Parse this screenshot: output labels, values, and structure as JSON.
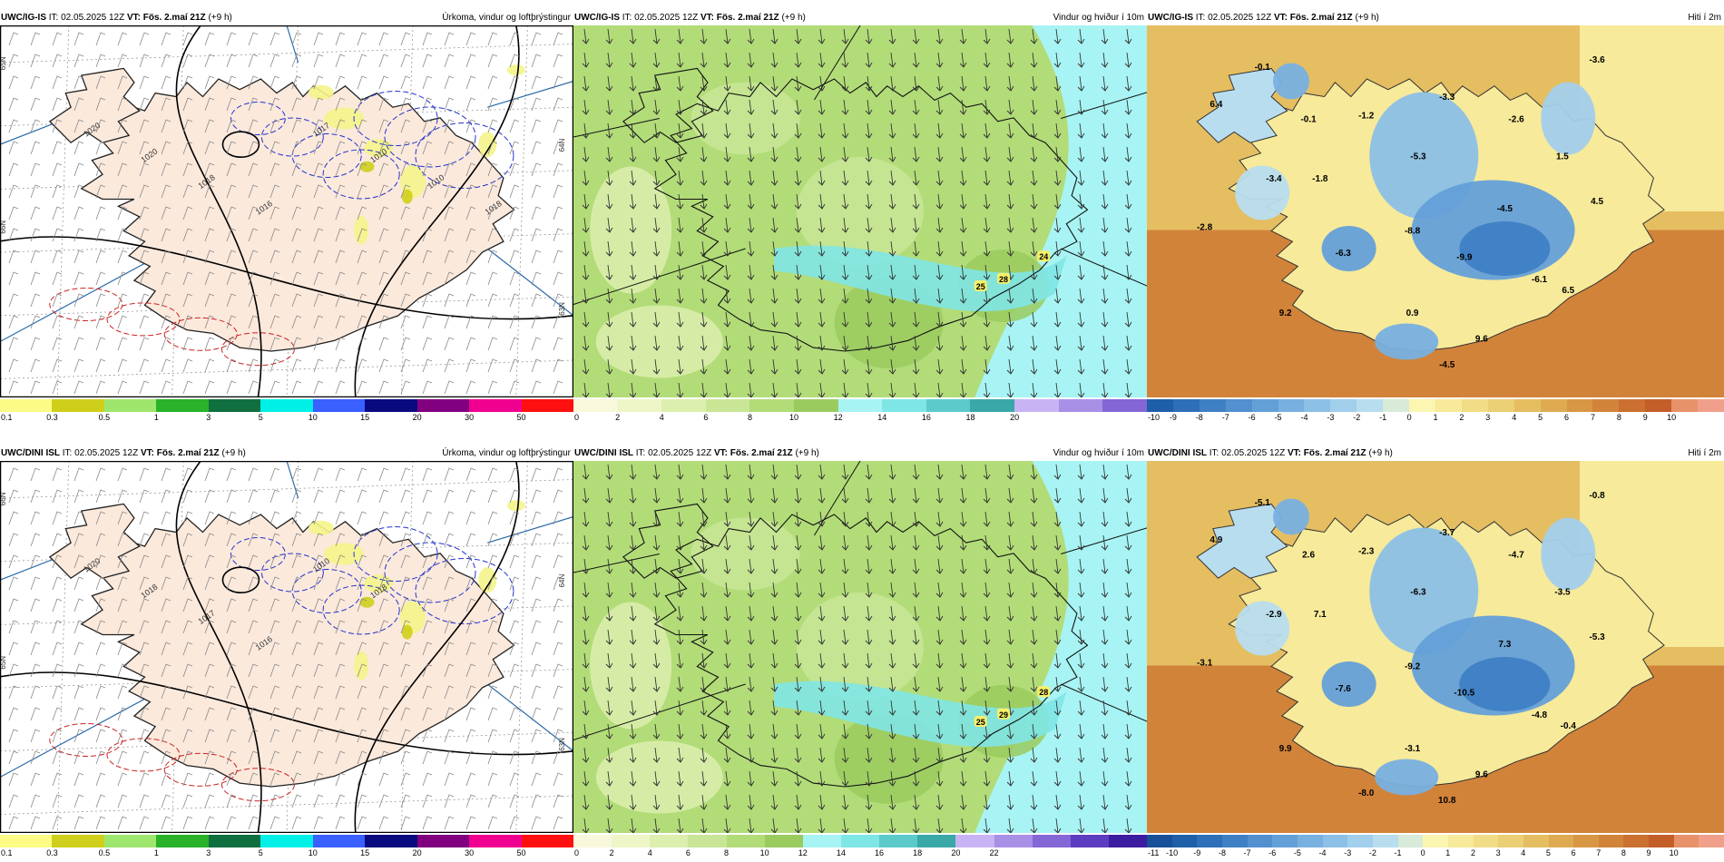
{
  "panels": [
    {
      "id": "a",
      "model": "UWC/IG-IS",
      "it_label": "IT:",
      "it": "02.05.2025 12Z",
      "vt_label": "VT:",
      "vt": "Fös. 2.maí 21Z",
      "lead": "(+9 h)",
      "field": "Úrkoma, vindur og loftþrýstingur",
      "type": "precip",
      "isobars": [
        "1020",
        "1020",
        "1018",
        "1016",
        "1017",
        "1010",
        "1010",
        "1018"
      ],
      "grid_labels": [
        "65N",
        "64N",
        "66N",
        "63N"
      ],
      "colorbar": {
        "colors": [
          "#fbfb86",
          "#cfcf1b",
          "#9fe66f",
          "#2ab22a",
          "#0f6f3f",
          "#00f0e8",
          "#3a60ff",
          "#0a0a80",
          "#800080",
          "#f00090",
          "#ff1010"
        ],
        "labels": [
          "0.1",
          "0.3",
          "0.5",
          "1",
          "3",
          "5",
          "10",
          "15",
          "20",
          "30",
          "50"
        ]
      }
    },
    {
      "id": "b",
      "model": "UWC/IG-IS",
      "it_label": "IT:",
      "it": "02.05.2025 12Z",
      "vt_label": "VT:",
      "vt": "Fös. 2.maí 21Z",
      "lead": "(+9 h)",
      "field": "Vindur og hviður í 10m",
      "type": "wind",
      "gust_labels": [
        "24",
        "28",
        "25"
      ],
      "colorbar": {
        "colors": [
          "#f8f8dc",
          "#eef6c8",
          "#dcefae",
          "#c8e696",
          "#b2dc78",
          "#9acb5e",
          "#a8f4f4",
          "#7fe6e6",
          "#5ccaca",
          "#3aa8a8",
          "#c8b4f4",
          "#a890e6",
          "#8466d6"
        ],
        "labels": [
          "0",
          "2",
          "4",
          "6",
          "8",
          "10",
          "12",
          "14",
          "16",
          "18",
          "20"
        ]
      }
    },
    {
      "id": "c",
      "model": "UWC/IG-IS",
      "it_label": "IT:",
      "it": "02.05.2025 12Z",
      "vt_label": "VT:",
      "vt": "Fös. 2.maí 21Z",
      "lead": "(+9 h)",
      "field": "Hiti í 2m",
      "type": "temp",
      "temps": [
        "-3.6",
        "6.4",
        "-0.1",
        "-1.2",
        "-3.3",
        "-0.1",
        "-2.6",
        "-5.3",
        "1.5",
        "-3.4",
        "-1.8",
        "-4.5",
        "4.5",
        "-2.8",
        "-6.3",
        "-8.8",
        "-9.9",
        "-6.1",
        "6.5",
        "0.9",
        "9.2",
        "9.6",
        "-4.5"
      ],
      "colorbar": {
        "colors": [
          "#1f5fa8",
          "#2e6fb7",
          "#3f80c5",
          "#5290cf",
          "#64a0d8",
          "#78b0e0",
          "#8cc0e6",
          "#a2cfec",
          "#b8ddef",
          "#d8ead8",
          "#fbf6b0",
          "#f7ea9a",
          "#f1dd86",
          "#ebcf74",
          "#e5be62",
          "#dfab52",
          "#d89744",
          "#d2833a",
          "#cb7030",
          "#c45e28",
          "#e8926a",
          "#f0a08a"
        ],
        "labels": [
          "-10",
          "-9",
          "-8",
          "-7",
          "-6",
          "-5",
          "-4",
          "-3",
          "-2",
          "-1",
          "0",
          "1",
          "2",
          "3",
          "4",
          "5",
          "6",
          "7",
          "8",
          "9",
          "10"
        ]
      }
    },
    {
      "id": "d",
      "model": "UWC/DINI ISL",
      "it_label": "IT:",
      "it": "02.05.2025 12Z",
      "vt_label": "VT:",
      "vt": "Fös. 2.maí 21Z",
      "lead": "(+9 h)",
      "field": "Úrkoma, vindur og loftþrýstingur",
      "type": "precip",
      "isobars": [
        "1020",
        "1018",
        "1017",
        "1016",
        "1010",
        "1018"
      ],
      "grid_labels": [
        "66N",
        "64N",
        "65N",
        "63N"
      ],
      "colorbar": {
        "colors": [
          "#fbfb86",
          "#cfcf1b",
          "#9fe66f",
          "#2ab22a",
          "#0f6f3f",
          "#00f0e8",
          "#3a60ff",
          "#0a0a80",
          "#800080",
          "#f00090",
          "#ff1010"
        ],
        "labels": [
          "0.1",
          "0.3",
          "0.5",
          "1",
          "3",
          "5",
          "10",
          "15",
          "20",
          "30",
          "50"
        ]
      }
    },
    {
      "id": "e",
      "model": "UWC/DINI ISL",
      "it_label": "IT:",
      "it": "02.05.2025 12Z",
      "vt_label": "VT:",
      "vt": "Fös. 2.maí 21Z",
      "lead": "(+9 h)",
      "field": "Vindur og hviður í 10m",
      "type": "wind",
      "gust_labels": [
        "28",
        "29",
        "25"
      ],
      "colorbar": {
        "colors": [
          "#f8f8dc",
          "#eef6c8",
          "#dcefae",
          "#c8e696",
          "#b2dc78",
          "#9acb5e",
          "#a8f4f4",
          "#7fe6e6",
          "#5ccaca",
          "#3aa8a8",
          "#c8b4f4",
          "#a890e6",
          "#8466d6",
          "#5c3cc0",
          "#3c1ca0"
        ],
        "labels": [
          "0",
          "2",
          "4",
          "6",
          "8",
          "10",
          "12",
          "14",
          "16",
          "18",
          "20",
          "22"
        ]
      }
    },
    {
      "id": "f",
      "model": "UWC/DINI ISL",
      "it_label": "IT:",
      "it": "02.05.2025 12Z",
      "vt_label": "VT:",
      "vt": "Fös. 2.maí 21Z",
      "lead": "(+9 h)",
      "field": "Hiti í 2m",
      "type": "temp",
      "temps": [
        "-0.8",
        "4.9",
        "-5.1",
        "-2.3",
        "-3.7",
        "2.6",
        "-4.7",
        "-6.3",
        "-3.5",
        "-2.9",
        "7.1",
        "7.3",
        "-5.3",
        "-3.1",
        "-7.6",
        "-9.2",
        "-10.5",
        "-4.8",
        "-0.4",
        "-3.1",
        "9.9",
        "9.6",
        "10.8",
        "-8.0"
      ],
      "colorbar": {
        "colors": [
          "#174f98",
          "#1f5fa8",
          "#2e6fb7",
          "#3f80c5",
          "#5290cf",
          "#64a0d8",
          "#78b0e0",
          "#8cc0e6",
          "#a2cfec",
          "#b8ddef",
          "#d8ead8",
          "#fbf6b0",
          "#f7ea9a",
          "#f1dd86",
          "#ebcf74",
          "#e5be62",
          "#dfab52",
          "#d89744",
          "#d2833a",
          "#cb7030",
          "#c45e28",
          "#e8926a",
          "#f0a08a"
        ],
        "labels": [
          "-11",
          "-10",
          "-9",
          "-8",
          "-7",
          "-6",
          "-5",
          "-4",
          "-3",
          "-2",
          "-1",
          "0",
          "1",
          "2",
          "3",
          "4",
          "5",
          "6",
          "7",
          "8",
          "9",
          "10"
        ]
      }
    }
  ]
}
